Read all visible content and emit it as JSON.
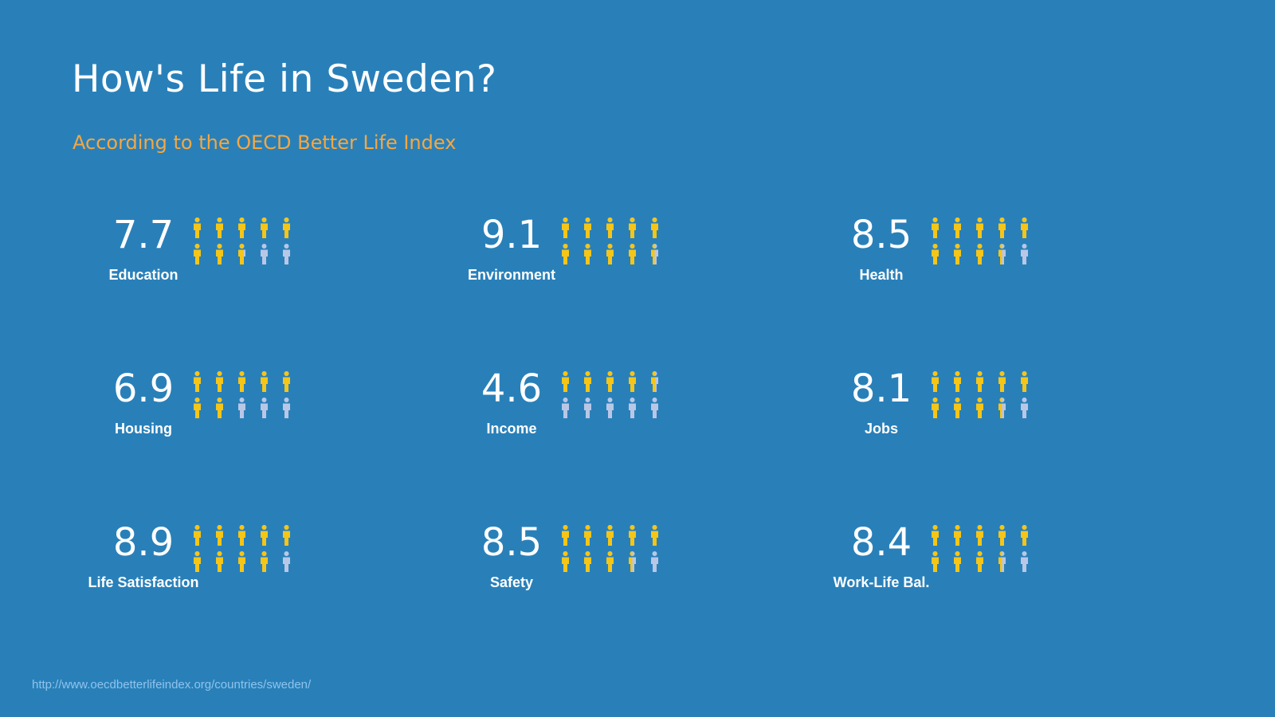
{
  "title": "How's Life in Sweden?",
  "subtitle": "According to the OECD Better Life Index",
  "source": "http://www.oecdbetterlifeindex.org/countries/sweden/",
  "colors": {
    "background": "#2980b9",
    "filled": "#f5c518",
    "empty": "#b9c7e6",
    "subtitle": "#f5a742"
  },
  "icon": "person-icon",
  "chart_data": {
    "type": "pictograph",
    "scale_max": 10,
    "icons_per_metric": 10,
    "metrics": [
      {
        "label": "Education",
        "value": 7.7
      },
      {
        "label": "Environment",
        "value": 9.1
      },
      {
        "label": "Health",
        "value": 8.5
      },
      {
        "label": "Housing",
        "value": 6.9
      },
      {
        "label": "Income",
        "value": 4.6
      },
      {
        "label": "Jobs",
        "value": 8.1
      },
      {
        "label": "Life Satisfaction",
        "value": 8.9
      },
      {
        "label": "Safety",
        "value": 8.5
      },
      {
        "label": "Work-Life Bal.",
        "value": 8.4
      }
    ]
  }
}
